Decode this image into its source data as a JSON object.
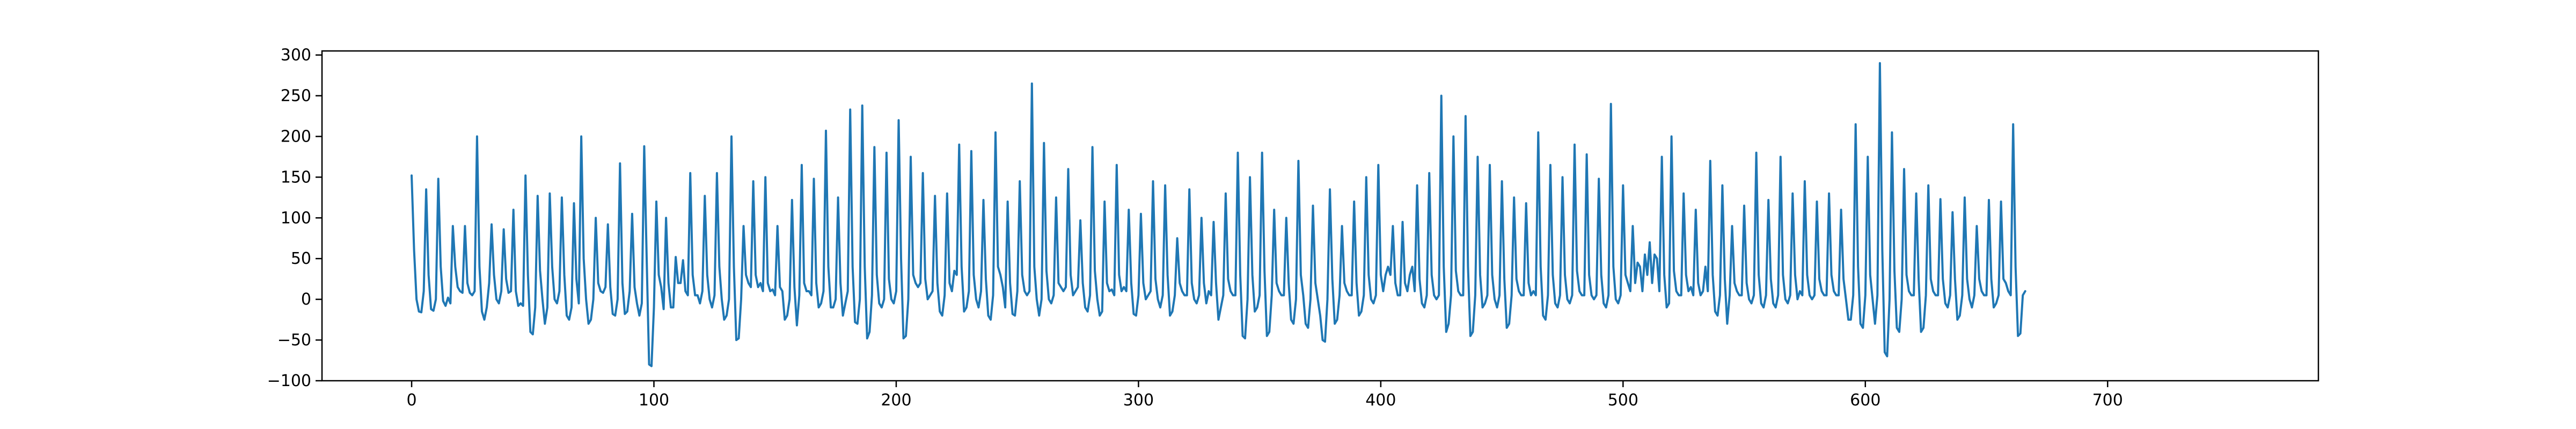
{
  "chart_data": {
    "type": "line",
    "title": "",
    "xlabel": "",
    "ylabel": "",
    "xlim": [
      -37,
      787
    ],
    "ylim": [
      -100,
      305
    ],
    "grid": false,
    "legend": "none",
    "x_ticks": [
      0,
      100,
      200,
      300,
      400,
      500,
      600,
      700
    ],
    "y_ticks": [
      -100,
      -50,
      0,
      50,
      100,
      150,
      200,
      250,
      300
    ],
    "series": [
      {
        "name": "",
        "color": "#1f77b4",
        "x_start": 0,
        "x_step": 1,
        "values": [
          152,
          60,
          0,
          -15,
          -16,
          10,
          135,
          30,
          -12,
          -14,
          0,
          148,
          40,
          -2,
          -8,
          2,
          -5,
          90,
          40,
          15,
          10,
          8,
          90,
          20,
          8,
          5,
          10,
          200,
          40,
          -15,
          -25,
          -10,
          20,
          92,
          30,
          0,
          -5,
          10,
          86,
          25,
          8,
          10,
          110,
          10,
          -8,
          -5,
          -8,
          152,
          30,
          -40,
          -43,
          -10,
          127,
          35,
          0,
          -30,
          -10,
          130,
          40,
          0,
          -5,
          10,
          125,
          30,
          -20,
          -25,
          -10,
          118,
          25,
          -5,
          200,
          50,
          0,
          -30,
          -25,
          0,
          100,
          20,
          10,
          8,
          15,
          92,
          15,
          -18,
          -20,
          0,
          167,
          20,
          -18,
          -15,
          10,
          105,
          15,
          -5,
          -20,
          -5,
          188,
          50,
          -80,
          -82,
          -10,
          120,
          30,
          15,
          -12,
          100,
          20,
          -10,
          -10,
          52,
          20,
          20,
          48,
          10,
          5,
          155,
          30,
          5,
          5,
          -5,
          10,
          127,
          30,
          0,
          -10,
          5,
          155,
          40,
          0,
          -25,
          -20,
          0,
          200,
          40,
          -50,
          -48,
          0,
          90,
          30,
          20,
          15,
          145,
          30,
          15,
          20,
          10,
          150,
          20,
          10,
          12,
          5,
          90,
          15,
          10,
          -25,
          -20,
          0,
          122,
          15,
          -32,
          5,
          165,
          20,
          10,
          10,
          5,
          148,
          20,
          -10,
          -5,
          10,
          207,
          40,
          -10,
          -10,
          0,
          125,
          20,
          -20,
          -5,
          10,
          233,
          40,
          -28,
          -30,
          0,
          238,
          40,
          -48,
          -40,
          5,
          187,
          30,
          -5,
          -10,
          0,
          180,
          25,
          0,
          -5,
          10,
          220,
          50,
          -48,
          -45,
          0,
          175,
          30,
          20,
          15,
          20,
          155,
          25,
          0,
          5,
          10,
          127,
          20,
          -15,
          -20,
          5,
          130,
          20,
          10,
          35,
          30,
          190,
          40,
          -15,
          -10,
          10,
          182,
          30,
          0,
          -10,
          10,
          122,
          25,
          -20,
          -25,
          5,
          205,
          40,
          30,
          15,
          -10,
          120,
          20,
          -18,
          -20,
          10,
          145,
          30,
          10,
          5,
          10,
          265,
          40,
          0,
          -20,
          0,
          192,
          35,
          0,
          -5,
          5,
          125,
          20,
          15,
          10,
          15,
          160,
          30,
          5,
          10,
          15,
          97,
          20,
          -10,
          -15,
          5,
          187,
          35,
          0,
          -20,
          -15,
          120,
          20,
          10,
          12,
          5,
          165,
          30,
          10,
          15,
          10,
          110,
          20,
          -18,
          -20,
          5,
          105,
          20,
          0,
          5,
          10,
          145,
          25,
          0,
          -10,
          5,
          140,
          30,
          -20,
          -15,
          5,
          75,
          20,
          10,
          5,
          5,
          135,
          20,
          0,
          -5,
          5,
          100,
          20,
          -5,
          10,
          5,
          95,
          20,
          -25,
          -10,
          5,
          130,
          25,
          10,
          5,
          5,
          180,
          30,
          -45,
          -48,
          0,
          150,
          30,
          -15,
          -10,
          5,
          180,
          35,
          -45,
          -40,
          5,
          110,
          20,
          10,
          5,
          5,
          100,
          20,
          -25,
          -30,
          0,
          170,
          30,
          5,
          -30,
          -35,
          0,
          115,
          20,
          0,
          -20,
          -50,
          -52,
          0,
          135,
          25,
          -30,
          -25,
          5,
          90,
          20,
          10,
          5,
          5,
          120,
          20,
          -20,
          -15,
          5,
          150,
          30,
          0,
          -5,
          5,
          165,
          30,
          10,
          30,
          40,
          30,
          90,
          20,
          5,
          5,
          95,
          20,
          10,
          30,
          40,
          10,
          140,
          25,
          -5,
          -10,
          5,
          155,
          30,
          5,
          0,
          5,
          250,
          40,
          -40,
          -30,
          5,
          200,
          35,
          10,
          5,
          5,
          225,
          40,
          -45,
          -40,
          5,
          175,
          30,
          -10,
          -5,
          5,
          165,
          30,
          0,
          -10,
          5,
          145,
          25,
          -35,
          -30,
          5,
          125,
          25,
          10,
          5,
          5,
          118,
          20,
          5,
          10,
          5,
          205,
          40,
          -20,
          -25,
          5,
          165,
          30,
          -5,
          -10,
          5,
          150,
          30,
          0,
          -5,
          5,
          190,
          35,
          10,
          5,
          5,
          178,
          30,
          5,
          0,
          5,
          148,
          30,
          -5,
          -10,
          5,
          240,
          40,
          0,
          -5,
          5,
          140,
          30,
          20,
          10,
          90,
          20,
          45,
          40,
          10,
          55,
          30,
          70,
          20,
          55,
          50,
          10,
          175,
          30,
          -10,
          -5,
          200,
          35,
          10,
          5,
          5,
          130,
          30,
          10,
          15,
          5,
          110,
          20,
          5,
          10,
          40,
          10,
          170,
          30,
          -15,
          -20,
          5,
          140,
          25,
          -30,
          5,
          90,
          20,
          10,
          5,
          5,
          115,
          20,
          0,
          -5,
          5,
          180,
          30,
          -5,
          -10,
          5,
          122,
          25,
          -5,
          -10,
          5,
          175,
          30,
          0,
          -5,
          5,
          130,
          30,
          0,
          10,
          5,
          145,
          30,
          5,
          0,
          5,
          120,
          25,
          10,
          5,
          5,
          130,
          30,
          10,
          5,
          5,
          110,
          25,
          0,
          -25,
          -25,
          5,
          215,
          40,
          -30,
          -35,
          5,
          175,
          30,
          0,
          -30,
          5,
          290,
          60,
          -65,
          -70,
          0,
          205,
          35,
          -35,
          -40,
          0,
          160,
          30,
          10,
          5,
          5,
          130,
          25,
          -40,
          -35,
          5,
          140,
          25,
          10,
          5,
          5,
          123,
          25,
          -5,
          -10,
          5,
          107,
          25,
          -25,
          -20,
          5,
          125,
          25,
          0,
          -10,
          5,
          90,
          25,
          10,
          5,
          5,
          122,
          25,
          -10,
          -5,
          5,
          120,
          25,
          20,
          10,
          5,
          215,
          40,
          -45,
          -42,
          5,
          10
        ]
      }
    ]
  }
}
